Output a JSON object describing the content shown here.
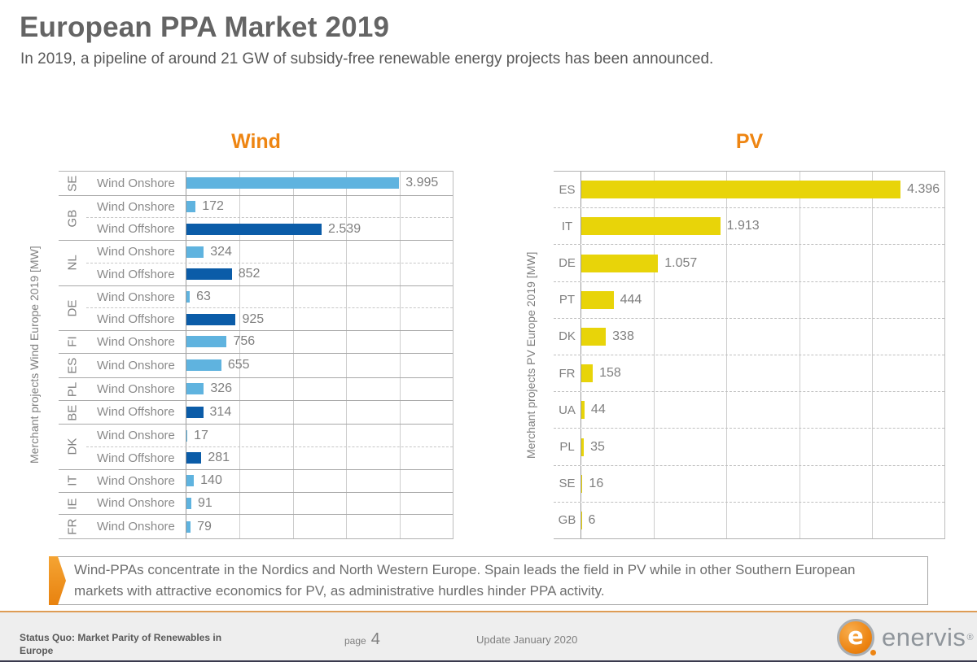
{
  "header": {
    "title": "European PPA Market 2019",
    "subtitle": "In 2019, a pipeline of around 21 GW of subsidy-free renewable energy projects has been announced."
  },
  "colors": {
    "accent_orange": "#EE8512",
    "series": {
      "onshore": "#5FB3DF",
      "offshore": "#0B5CA8",
      "pv": "#E8D409"
    },
    "value_text": "#7F7F7F"
  },
  "chart_data": [
    {
      "type": "bar",
      "orientation": "horizontal",
      "title": "Wind",
      "axis_title": "Merchant projects Wind Europe 2019 [MW]",
      "unit": "MW",
      "xlim": [
        0,
        5000
      ],
      "gridline_step": 1000,
      "grid": true,
      "groups": [
        {
          "country": "SE",
          "rows": [
            {
              "series": "Wind Onshore",
              "value": 3995,
              "label": "3.995",
              "type": "onshore"
            }
          ]
        },
        {
          "country": "GB",
          "rows": [
            {
              "series": "Wind Onshore",
              "value": 172,
              "label": "172",
              "type": "onshore"
            },
            {
              "series": "Wind Offshore",
              "value": 2539,
              "label": "2.539",
              "type": "offshore"
            }
          ]
        },
        {
          "country": "NL",
          "rows": [
            {
              "series": "Wind Onshore",
              "value": 324,
              "label": "324",
              "type": "onshore"
            },
            {
              "series": "Wind Offshore",
              "value": 852,
              "label": "852",
              "type": "offshore"
            }
          ]
        },
        {
          "country": "DE",
          "rows": [
            {
              "series": "Wind Onshore",
              "value": 63,
              "label": "63",
              "type": "onshore"
            },
            {
              "series": "Wind Offshore",
              "value": 925,
              "label": "925",
              "type": "offshore"
            }
          ]
        },
        {
          "country": "FI",
          "rows": [
            {
              "series": "Wind Onshore",
              "value": 756,
              "label": "756",
              "type": "onshore"
            }
          ]
        },
        {
          "country": "ES",
          "rows": [
            {
              "series": "Wind Onshore",
              "value": 655,
              "label": "655",
              "type": "onshore"
            }
          ]
        },
        {
          "country": "PL",
          "rows": [
            {
              "series": "Wind Onshore",
              "value": 326,
              "label": "326",
              "type": "onshore"
            }
          ]
        },
        {
          "country": "BE",
          "rows": [
            {
              "series": "Wind Offshore",
              "value": 314,
              "label": "314",
              "type": "offshore"
            }
          ]
        },
        {
          "country": "DK",
          "rows": [
            {
              "series": "Wind Onshore",
              "value": 17,
              "label": "17",
              "type": "onshore"
            },
            {
              "series": "Wind Offshore",
              "value": 281,
              "label": "281",
              "type": "offshore"
            }
          ]
        },
        {
          "country": "IT",
          "rows": [
            {
              "series": "Wind Onshore",
              "value": 140,
              "label": "140",
              "type": "onshore"
            }
          ]
        },
        {
          "country": "IE",
          "rows": [
            {
              "series": "Wind Onshore",
              "value": 91,
              "label": "91",
              "type": "onshore"
            }
          ]
        },
        {
          "country": "FR",
          "rows": [
            {
              "series": "Wind Onshore",
              "value": 79,
              "label": "79",
              "type": "onshore"
            }
          ]
        }
      ]
    },
    {
      "type": "bar",
      "orientation": "horizontal",
      "title": "PV",
      "axis_title": "Merchant projects PV Europe 2019 [MW]",
      "unit": "MW",
      "xlim": [
        0,
        5000
      ],
      "gridline_step": 1000,
      "grid": true,
      "groups": [
        {
          "country": "ES",
          "rows": [
            {
              "value": 4396,
              "label": "4.396",
              "type": "pv"
            }
          ]
        },
        {
          "country": "IT",
          "rows": [
            {
              "value": 1913,
              "label": "1.913",
              "type": "pv"
            }
          ]
        },
        {
          "country": "DE",
          "rows": [
            {
              "value": 1057,
              "label": "1.057",
              "type": "pv"
            }
          ]
        },
        {
          "country": "PT",
          "rows": [
            {
              "value": 444,
              "label": "444",
              "type": "pv"
            }
          ]
        },
        {
          "country": "DK",
          "rows": [
            {
              "value": 338,
              "label": "338",
              "type": "pv"
            }
          ]
        },
        {
          "country": "FR",
          "rows": [
            {
              "value": 158,
              "label": "158",
              "type": "pv"
            }
          ]
        },
        {
          "country": "UA",
          "rows": [
            {
              "value": 44,
              "label": "44",
              "type": "pv"
            }
          ]
        },
        {
          "country": "PL",
          "rows": [
            {
              "value": 35,
              "label": "35",
              "type": "pv"
            }
          ]
        },
        {
          "country": "SE",
          "rows": [
            {
              "value": 16,
              "label": "16",
              "type": "pv"
            }
          ]
        },
        {
          "country": "GB",
          "rows": [
            {
              "value": 6,
              "label": "6",
              "type": "pv"
            }
          ]
        }
      ]
    }
  ],
  "callout": {
    "text": "Wind-PPAs concentrate in the Nordics and North Western Europe. Spain leads the field in PV while in other Southern European markets with attractive economics for PV, as administrative hurdles hinder PPA activity."
  },
  "footer": {
    "left": "Status Quo: Market Parity of Renewables in Europe",
    "page_label": "page",
    "page_number": "4",
    "update": "Update January 2020",
    "logo_letter": "e",
    "logo_text": "enervis",
    "logo_reg": "®"
  }
}
